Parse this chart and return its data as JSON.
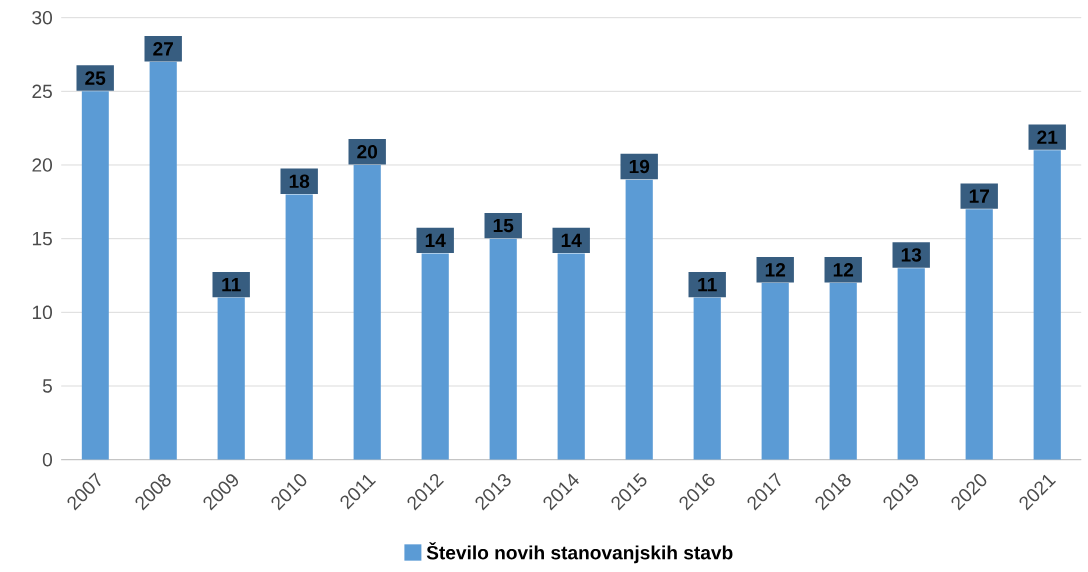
{
  "chart_data": {
    "type": "bar",
    "categories": [
      "2007",
      "2008",
      "2009",
      "2010",
      "2011",
      "2012",
      "2013",
      "2014",
      "2015",
      "2016",
      "2017",
      "2018",
      "2019",
      "2020",
      "2021"
    ],
    "series": [
      {
        "name": "Število novih stanovanjskih stavb",
        "color": "#5b9bd5",
        "values": [
          25,
          27,
          11,
          18,
          20,
          14,
          15,
          14,
          19,
          11,
          12,
          12,
          13,
          17,
          21
        ]
      }
    ],
    "ylim": [
      0,
      30
    ],
    "yticks": [
      0,
      5,
      10,
      15,
      20,
      25,
      30
    ],
    "grid": "y",
    "legend": "bottom",
    "data_labels": true
  }
}
